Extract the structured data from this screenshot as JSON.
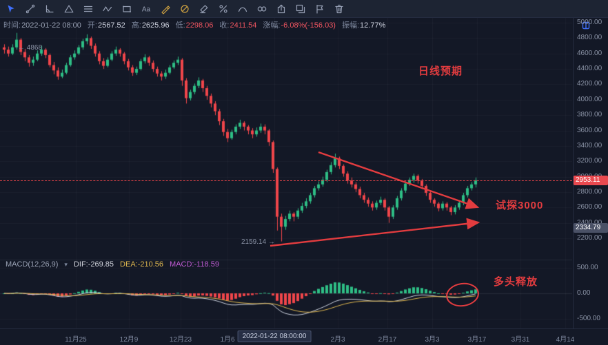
{
  "colors": {
    "up": "#2ebd85",
    "down": "#ef454a",
    "dif_line": "#cdd2df",
    "dea_line": "#e0b84f",
    "annotation_red": "#e23c3f",
    "price_tag_bg": "#e9494f",
    "accent_blue": "#3f6ffb"
  },
  "toolbar": {
    "tools": [
      {
        "id": "pointer-tool",
        "active": true
      },
      {
        "id": "trend-line-tool"
      },
      {
        "id": "angle-tool"
      },
      {
        "id": "triangle-tool"
      },
      {
        "id": "horizontal-lines-tool"
      },
      {
        "id": "wave-tool"
      },
      {
        "id": "rectangle-tool"
      },
      {
        "id": "text-tool"
      },
      {
        "id": "brush-tool",
        "color": "#d2a441"
      },
      {
        "id": "marker-tool",
        "color": "#d2a441"
      },
      {
        "id": "eraser-tool"
      },
      {
        "id": "percent-tool"
      },
      {
        "id": "pattern-tool"
      },
      {
        "id": "cycle-tool"
      },
      {
        "id": "export-tool"
      },
      {
        "id": "copy-tool"
      },
      {
        "id": "flag-tool"
      },
      {
        "id": "delete-tool"
      }
    ]
  },
  "info_bar": {
    "fields": [
      {
        "label": "时间:",
        "value": "2022-01-22 08:00",
        "tone": "muted"
      },
      {
        "label": "开:",
        "value": "2567.52",
        "tone": ""
      },
      {
        "label": "高:",
        "value": "2625.96",
        "tone": ""
      },
      {
        "label": "低:",
        "value": "2298.06",
        "tone": "down"
      },
      {
        "label": "收:",
        "value": "2411.54",
        "tone": "down"
      },
      {
        "label": "涨幅:",
        "value": "-6.08%(-156.03)",
        "tone": "down"
      },
      {
        "label": "振幅:",
        "value": "12.77%",
        "tone": ""
      }
    ]
  },
  "macd_header": {
    "params": "MACD(12,26,9)",
    "caret": "▾",
    "dif": "DIF:-269.85",
    "dea": "DEA:-210.56",
    "macd": "MACD:-118.59"
  },
  "annotations": {
    "daily_expectation": "日线预期",
    "test_3000": "试探3000",
    "bulls_release": "多头释放",
    "high_marker": "← 4868",
    "low_marker": "2159.14 →"
  },
  "axis": {
    "price_tag": "2953.11",
    "secondary_tag": "2334.79",
    "price_ticks": [
      "5000.00",
      "4800.00",
      "4600.00",
      "4400.00",
      "4200.00",
      "4000.00",
      "3800.00",
      "3600.00",
      "3400.00",
      "3200.00",
      "3000.00",
      "2800.00",
      "2600.00",
      "2400.00",
      "2200.00"
    ],
    "macd_ticks": [
      "500.00",
      "0.00",
      "-500.00"
    ]
  },
  "chart_data": {
    "type": "candlestick",
    "interval": "daily",
    "ylim": [
      2200,
      5000
    ],
    "current_price": 2953.11,
    "session_high": 4868,
    "session_low": 2159.14,
    "x_labels": [
      "11月25",
      "12月9",
      "12月23",
      "1月6",
      "2022-01-22 08:00:00",
      "2月3",
      "2月17",
      "3月3",
      "3月17",
      "3月31",
      "4月14"
    ],
    "x_highlight_index": 4,
    "indicator": {
      "name": "MACD",
      "params": [
        12,
        26,
        9
      ],
      "dif": -269.85,
      "dea": -210.56,
      "macd": -118.59,
      "ylim": [
        -500,
        500
      ]
    },
    "candles": [
      [
        4680,
        4720,
        4600,
        4650
      ],
      [
        4650,
        4690,
        4560,
        4600
      ],
      [
        4600,
        4720,
        4580,
        4680
      ],
      [
        4680,
        4868,
        4650,
        4780
      ],
      [
        4780,
        4800,
        4580,
        4620
      ],
      [
        4620,
        4660,
        4500,
        4550
      ],
      [
        4550,
        4580,
        4430,
        4480
      ],
      [
        4480,
        4560,
        4440,
        4520
      ],
      [
        4520,
        4640,
        4500,
        4600
      ],
      [
        4600,
        4700,
        4570,
        4650
      ],
      [
        4650,
        4670,
        4540,
        4580
      ],
      [
        4580,
        4600,
        4420,
        4450
      ],
      [
        4450,
        4490,
        4330,
        4380
      ],
      [
        4380,
        4420,
        4260,
        4300
      ],
      [
        4300,
        4390,
        4280,
        4350
      ],
      [
        4350,
        4480,
        4330,
        4450
      ],
      [
        4450,
        4580,
        4430,
        4550
      ],
      [
        4550,
        4640,
        4520,
        4600
      ],
      [
        4600,
        4710,
        4580,
        4680
      ],
      [
        4680,
        4790,
        4650,
        4760
      ],
      [
        4760,
        4850,
        4720,
        4800
      ],
      [
        4800,
        4820,
        4660,
        4700
      ],
      [
        4700,
        4730,
        4560,
        4600
      ],
      [
        4600,
        4630,
        4460,
        4500
      ],
      [
        4500,
        4540,
        4400,
        4440
      ],
      [
        4440,
        4550,
        4420,
        4520
      ],
      [
        4520,
        4630,
        4500,
        4600
      ],
      [
        4600,
        4690,
        4570,
        4650
      ],
      [
        4650,
        4670,
        4560,
        4600
      ],
      [
        4600,
        4620,
        4460,
        4500
      ],
      [
        4500,
        4530,
        4380,
        4420
      ],
      [
        4420,
        4450,
        4310,
        4350
      ],
      [
        4350,
        4430,
        4320,
        4400
      ],
      [
        4400,
        4530,
        4380,
        4500
      ],
      [
        4500,
        4590,
        4470,
        4550
      ],
      [
        4550,
        4570,
        4440,
        4480
      ],
      [
        4480,
        4510,
        4360,
        4400
      ],
      [
        4400,
        4430,
        4300,
        4340
      ],
      [
        4340,
        4370,
        4250,
        4300
      ],
      [
        4300,
        4390,
        4270,
        4350
      ],
      [
        4350,
        4450,
        4330,
        4420
      ],
      [
        4420,
        4510,
        4400,
        4480
      ],
      [
        4480,
        4560,
        4450,
        4520
      ],
      [
        4520,
        4540,
        4180,
        4250
      ],
      [
        4250,
        4280,
        3950,
        4020
      ],
      [
        4020,
        4130,
        3990,
        4100
      ],
      [
        4100,
        4210,
        4070,
        4180
      ],
      [
        4180,
        4290,
        4150,
        4250
      ],
      [
        4250,
        4270,
        4100,
        4150
      ],
      [
        4150,
        4180,
        4000,
        4050
      ],
      [
        4050,
        4080,
        3900,
        3950
      ],
      [
        3950,
        3980,
        3800,
        3850
      ],
      [
        3850,
        3880,
        3670,
        3720
      ],
      [
        3720,
        3750,
        3530,
        3580
      ],
      [
        3580,
        3620,
        3450,
        3500
      ],
      [
        3500,
        3610,
        3480,
        3580
      ],
      [
        3580,
        3680,
        3550,
        3650
      ],
      [
        3650,
        3740,
        3620,
        3700
      ],
      [
        3700,
        3720,
        3600,
        3650
      ],
      [
        3650,
        3670,
        3550,
        3600
      ],
      [
        3600,
        3630,
        3500,
        3550
      ],
      [
        3550,
        3640,
        3520,
        3600
      ],
      [
        3600,
        3690,
        3570,
        3650
      ],
      [
        3650,
        3680,
        3550,
        3600
      ],
      [
        3600,
        3620,
        3400,
        3450
      ],
      [
        3450,
        3470,
        3050,
        3100
      ],
      [
        3100,
        3120,
        2300,
        2480
      ],
      [
        2480,
        2520,
        2159.14,
        2350
      ],
      [
        2350,
        2490,
        2310,
        2450
      ],
      [
        2450,
        2560,
        2420,
        2520
      ],
      [
        2520,
        2540,
        2420,
        2480
      ],
      [
        2480,
        2590,
        2450,
        2560
      ],
      [
        2560,
        2660,
        2530,
        2620
      ],
      [
        2620,
        2720,
        2590,
        2680
      ],
      [
        2680,
        2790,
        2650,
        2760
      ],
      [
        2760,
        2880,
        2730,
        2850
      ],
      [
        2850,
        2940,
        2820,
        2900
      ],
      [
        2900,
        3000,
        2870,
        2960
      ],
      [
        2960,
        3090,
        2930,
        3060
      ],
      [
        3060,
        3190,
        3030,
        3150
      ],
      [
        3150,
        3300,
        3120,
        3240
      ],
      [
        3240,
        3260,
        3100,
        3140
      ],
      [
        3140,
        3160,
        3000,
        3040
      ],
      [
        3040,
        3070,
        2910,
        2950
      ],
      [
        2950,
        2990,
        2860,
        2900
      ],
      [
        2900,
        2930,
        2800,
        2840
      ],
      [
        2840,
        2870,
        2720,
        2760
      ],
      [
        2760,
        2790,
        2660,
        2700
      ],
      [
        2700,
        2730,
        2610,
        2650
      ],
      [
        2650,
        2680,
        2560,
        2600
      ],
      [
        2600,
        2690,
        2570,
        2660
      ],
      [
        2660,
        2740,
        2630,
        2700
      ],
      [
        2700,
        2720,
        2560,
        2600
      ],
      [
        2600,
        2620,
        2400,
        2480
      ],
      [
        2480,
        2630,
        2450,
        2600
      ],
      [
        2600,
        2750,
        2570,
        2720
      ],
      [
        2720,
        2850,
        2690,
        2820
      ],
      [
        2820,
        2940,
        2790,
        2910
      ],
      [
        2910,
        2990,
        2880,
        2960
      ],
      [
        2960,
        3040,
        2920,
        3010
      ],
      [
        3010,
        3030,
        2910,
        2950
      ],
      [
        2950,
        2970,
        2840,
        2880
      ],
      [
        2880,
        2900,
        2750,
        2790
      ],
      [
        2790,
        2810,
        2660,
        2700
      ],
      [
        2700,
        2720,
        2610,
        2650
      ],
      [
        2650,
        2670,
        2550,
        2590
      ],
      [
        2590,
        2680,
        2560,
        2650
      ],
      [
        2650,
        2670,
        2560,
        2600
      ],
      [
        2600,
        2620,
        2500,
        2540
      ],
      [
        2540,
        2630,
        2510,
        2600
      ],
      [
        2600,
        2690,
        2570,
        2660
      ],
      [
        2660,
        2790,
        2630,
        2760
      ],
      [
        2760,
        2880,
        2730,
        2850
      ],
      [
        2850,
        2930,
        2820,
        2900
      ],
      [
        2900,
        2990,
        2860,
        2953.11
      ]
    ]
  }
}
